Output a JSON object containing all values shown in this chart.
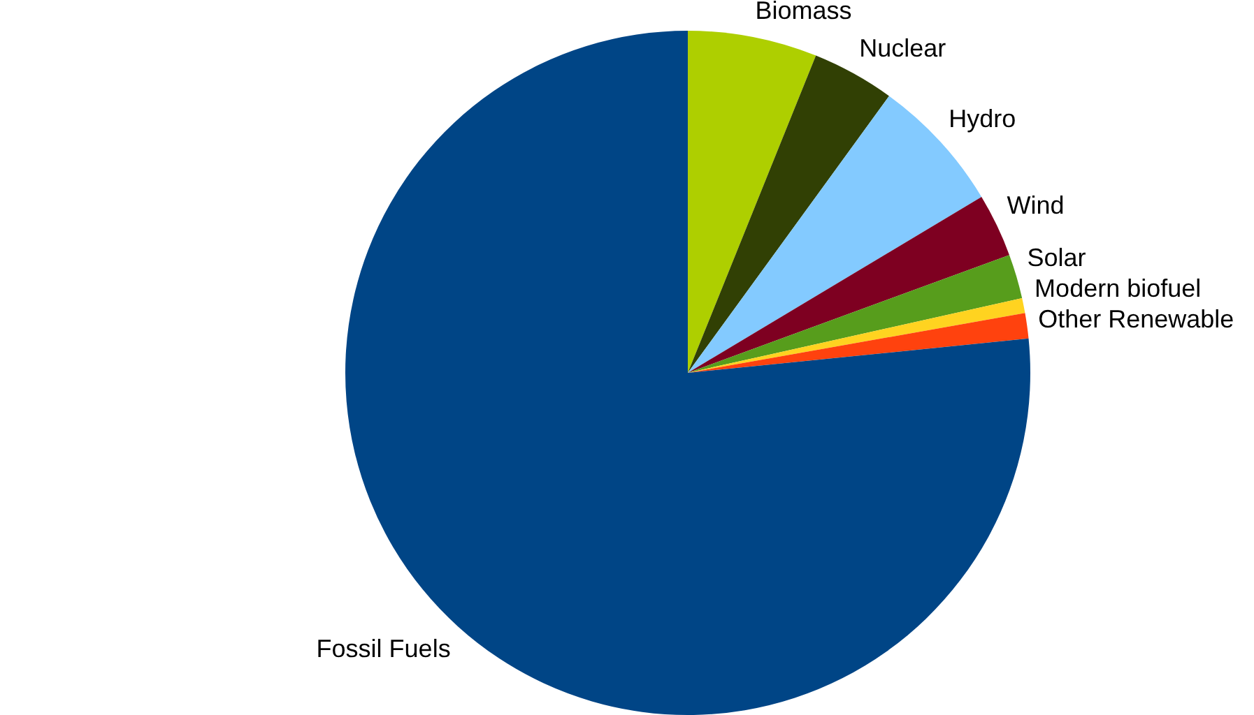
{
  "chart_data": {
    "type": "pie",
    "categories": [
      "Biomass",
      "Nuclear",
      "Hydro",
      "Wind",
      "Solar",
      "Modern biofuel",
      "Other Renewable",
      "Fossil Fuels"
    ],
    "values": [
      6.1,
      3.9,
      6.4,
      3.0,
      2.1,
      0.7,
      1.2,
      76.6
    ],
    "colors": [
      "#aecf00",
      "#314004",
      "#83caff",
      "#7e0021",
      "#579d1c",
      "#ffd320",
      "#ff420e",
      "#004586"
    ]
  }
}
